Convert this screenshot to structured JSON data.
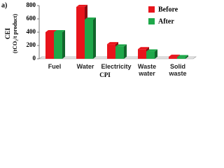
{
  "panel_label": "a)",
  "chart_data": {
    "type": "bar3d",
    "x_label": "CPI",
    "y_label": "CEI",
    "y_label_unit": "(tCO₂/t product)",
    "categories": [
      "Fuel",
      "Water",
      "Electricity",
      "Waste water",
      "Solid waste"
    ],
    "series": [
      {
        "name": "Before",
        "color": "#e8141b",
        "values": [
          400,
          780,
          220,
          145,
          30
        ]
      },
      {
        "name": "After",
        "color": "#1ea84a",
        "values": [
          400,
          590,
          185,
          110,
          25
        ]
      }
    ],
    "ylim": [
      0,
      800
    ],
    "yticks": [
      0,
      200,
      400,
      600,
      800
    ],
    "grid": false
  }
}
